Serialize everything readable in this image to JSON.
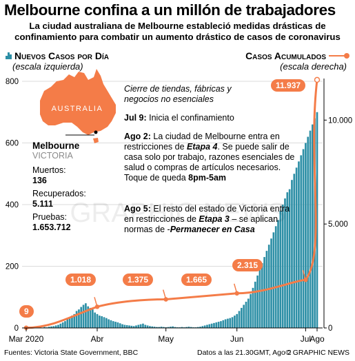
{
  "title": "Melbourne confina a un millón de trabajadores",
  "subtitle": "La ciudad australiana de Melbourne estableció medidas drásticas de confinamiento para combatir un aumento drástico de casos de coronavirus",
  "legend": {
    "left_name": "Nuevos Casos por Día",
    "left_scale": "(escala izquierda)",
    "right_name": "Casos Acumulados",
    "right_scale": "(escala derecha)"
  },
  "map": {
    "label": "AUSTRALIA"
  },
  "info": {
    "city": "Melbourne",
    "state": "VICTORIA",
    "deaths_label": "Muertos:",
    "deaths": "136",
    "recovered_label": "Recuperados:",
    "recovered": "5.111",
    "tests_label": "Pruebas:",
    "tests": "1.653.712"
  },
  "annotations": {
    "intro": "Cierre de tiendas, fábricas y negocios no esenciales",
    "jul9_date": "Jul 9:",
    "jul9_text": " Inicia el confinamiento",
    "ago2_date": "Ago 2:",
    "ago2_text1": " La ciudad de Melbourne entra en restricciones de ",
    "ago2_em": "Etapa 4",
    "ago2_text2": ". Se puede salir de casa solo por trabajo, razones esenciales de salud o compras de artículos necesarios. Toque de queda ",
    "ago2_bold": "8pm-5am",
    "ago5_date": "Ago 5:",
    "ago5_text1": " El resto del estado de Victoria entra en restricciones de ",
    "ago5_em": "Etapa 3",
    "ago5_text2": " – se aplican normas de -",
    "ago5_em2": "Permanecer en Casa"
  },
  "footer": {
    "sources": "Fuentes: Victoria State Government, BBC",
    "data_time": "Datos a las 21.30GMT, Ago  2",
    "credit": "© GRAPHIC NEWS"
  },
  "colors": {
    "bars": "#2d8fa6",
    "line": "#f47c48",
    "map": "#f47c48"
  },
  "chart_data": {
    "type": "bar+line",
    "x_ticks": [
      "Mar 2020",
      "Abr",
      "May",
      "Jun",
      "Jul",
      "Ago"
    ],
    "left_axis": {
      "ticks": [
        "0",
        "200",
        "400",
        "600",
        "800"
      ],
      "ylim": [
        0,
        800
      ]
    },
    "right_axis": {
      "ticks": [
        "0",
        "5.000",
        "10.000"
      ],
      "ylim": [
        0,
        12000
      ]
    },
    "series": [
      {
        "name": "Nuevos Casos por Día",
        "kind": "bar",
        "axis": "left",
        "note": "daily values, Mar 1 - Ago 2 (approx.)",
        "values": [
          0,
          0,
          0,
          0,
          1,
          0,
          2,
          1,
          3,
          2,
          4,
          5,
          6,
          8,
          10,
          14,
          18,
          22,
          28,
          35,
          40,
          45,
          55,
          60,
          68,
          75,
          80,
          70,
          65,
          60,
          50,
          45,
          40,
          38,
          35,
          32,
          28,
          25,
          22,
          20,
          18,
          15,
          12,
          10,
          9,
          8,
          7,
          6,
          8,
          10,
          12,
          14,
          10,
          8,
          6,
          5,
          4,
          3,
          3,
          4,
          3,
          2,
          3,
          4,
          5,
          3,
          2,
          2,
          3,
          2,
          3,
          4,
          3,
          2,
          2,
          3,
          4,
          6,
          8,
          10,
          12,
          14,
          16,
          18,
          20,
          22,
          25,
          28,
          30,
          32,
          35,
          40,
          45,
          55,
          65,
          75,
          85,
          95,
          110,
          130,
          150,
          170,
          190,
          210,
          230,
          250,
          270,
          290,
          310,
          330,
          350,
          380,
          400,
          420,
          440,
          450,
          480,
          500,
          520,
          540,
          560,
          580,
          600,
          620,
          640,
          660,
          680,
          700
        ]
      },
      {
        "name": "Casos Acumulados",
        "kind": "line",
        "axis": "right",
        "points": [
          {
            "date": "2020-03-01",
            "value": 9
          },
          {
            "date": "2020-04-01",
            "value": 1018
          },
          {
            "date": "2020-05-01",
            "value": 1375
          },
          {
            "date": "2020-06-01",
            "value": 1665
          },
          {
            "date": "2020-07-01",
            "value": 2315
          },
          {
            "date": "2020-08-02",
            "value": 11937
          }
        ]
      }
    ],
    "callouts": [
      "9",
      "1.018",
      "1.375",
      "1.665",
      "2.315",
      "11.937"
    ]
  }
}
